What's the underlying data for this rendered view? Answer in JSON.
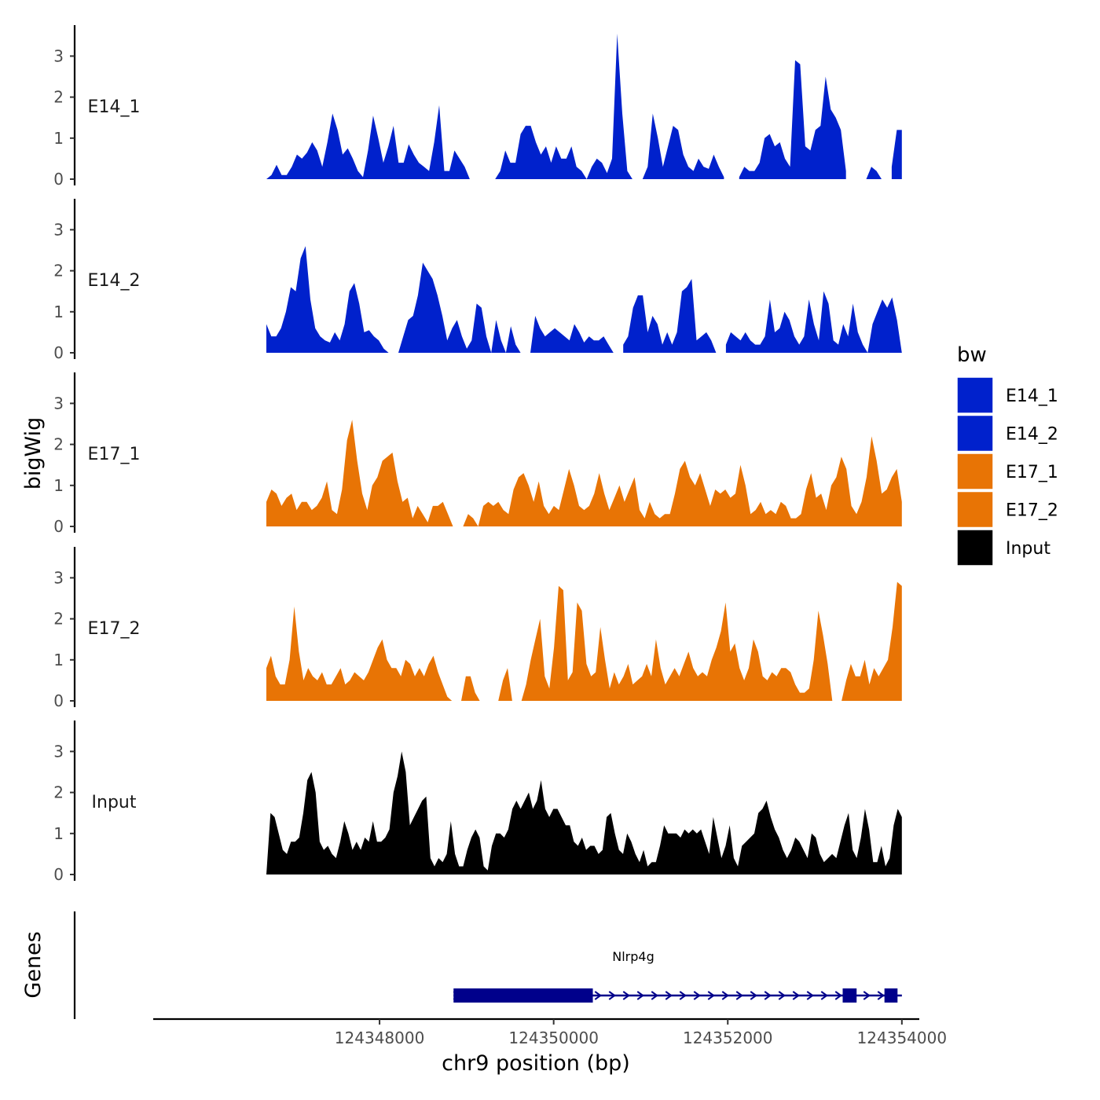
{
  "chart_data": {
    "type": "area",
    "x_min": 124346700,
    "x_max": 124354000,
    "xlim": [
      124345400,
      124354200
    ],
    "ylim": [
      0,
      3.6
    ],
    "y_ticks": [
      "0",
      "1",
      "2",
      "3"
    ],
    "x_ticks": [
      {
        "value": 124348000,
        "label": "124348000"
      },
      {
        "value": 124350000,
        "label": "124350000"
      },
      {
        "value": 124352000,
        "label": "124352000"
      },
      {
        "value": 124354000,
        "label": "124354000"
      }
    ],
    "xlabel": "chr9 position (bp)",
    "ylabel": "bigWig",
    "genes_label": "Genes",
    "legend": {
      "title": "bw",
      "items": [
        {
          "label": "E14_1",
          "color": "#0021cc"
        },
        {
          "label": "E14_2",
          "color": "#0021cc"
        },
        {
          "label": "E17_1",
          "color": "#e87405"
        },
        {
          "label": "E17_2",
          "color": "#e87405"
        },
        {
          "label": "Input",
          "color": "#000000"
        }
      ]
    },
    "series": [
      {
        "name": "E14_1",
        "color": "#0021cc",
        "values": [
          0.0,
          0.1,
          0.35,
          0.1,
          0.1,
          0.3,
          0.6,
          0.5,
          0.65,
          0.9,
          0.7,
          0.3,
          0.9,
          1.6,
          1.2,
          0.6,
          0.75,
          0.5,
          0.2,
          0.05,
          0.7,
          1.55,
          1.0,
          0.4,
          0.8,
          1.3,
          0.4,
          0.4,
          0.85,
          0.6,
          0.4,
          0.3,
          0.2,
          0.9,
          1.8,
          0.2,
          0.2,
          0.7,
          0.5,
          0.3,
          0.0,
          null,
          null,
          null,
          null,
          0.0,
          0.2,
          0.7,
          0.4,
          0.4,
          1.1,
          1.3,
          1.3,
          0.9,
          0.6,
          0.8,
          0.4,
          0.8,
          0.5,
          0.5,
          0.8,
          0.3,
          0.2,
          0.0,
          0.3,
          0.5,
          0.4,
          0.15,
          0.5,
          3.55,
          1.6,
          0.2,
          0.0,
          null,
          0.0,
          0.3,
          1.6,
          1.0,
          0.3,
          0.8,
          1.3,
          1.2,
          0.6,
          0.3,
          0.2,
          0.5,
          0.3,
          0.25,
          0.6,
          0.3,
          0.05,
          null,
          null,
          0.05,
          0.3,
          0.2,
          0.2,
          0.4,
          1.0,
          1.1,
          0.8,
          0.9,
          0.5,
          0.3,
          2.9,
          2.8,
          0.8,
          0.7,
          1.2,
          1.3,
          2.5,
          1.7,
          1.5,
          1.2,
          0.2,
          null,
          0.0,
          null,
          0.0,
          0.3,
          0.2,
          0.0,
          null,
          0.3,
          1.2,
          1.2
        ]
      },
      {
        "name": "E14_2",
        "color": "#0021cc",
        "values": [
          0.7,
          0.4,
          0.4,
          0.6,
          1.0,
          1.6,
          1.5,
          2.3,
          2.6,
          1.3,
          0.6,
          0.4,
          0.3,
          0.25,
          0.5,
          0.3,
          0.7,
          1.5,
          1.7,
          1.2,
          0.5,
          0.55,
          0.4,
          0.3,
          0.1,
          0.0,
          null,
          0.0,
          0.4,
          0.8,
          0.9,
          1.4,
          2.2,
          2.0,
          1.8,
          1.4,
          0.9,
          0.3,
          0.6,
          0.8,
          0.4,
          0.1,
          0.3,
          1.2,
          1.1,
          0.4,
          0.0,
          0.8,
          0.3,
          0.0,
          0.65,
          0.2,
          0.0,
          null,
          0.0,
          0.9,
          0.6,
          0.4,
          0.5,
          0.6,
          0.5,
          0.4,
          0.3,
          0.7,
          0.5,
          0.25,
          0.4,
          0.3,
          0.3,
          0.4,
          0.2,
          0.0,
          null,
          0.2,
          0.4,
          1.1,
          1.4,
          1.4,
          0.5,
          0.9,
          0.7,
          0.2,
          0.5,
          0.2,
          0.5,
          1.5,
          1.6,
          1.8,
          0.3,
          0.4,
          0.5,
          0.3,
          0.0,
          null,
          0.2,
          0.5,
          0.4,
          0.3,
          0.5,
          0.3,
          0.2,
          0.2,
          0.4,
          1.3,
          0.5,
          0.6,
          1.0,
          0.8,
          0.4,
          0.2,
          0.4,
          1.3,
          0.7,
          0.3,
          1.5,
          1.2,
          0.3,
          0.2,
          0.7,
          0.4,
          1.2,
          0.5,
          0.2,
          0.0,
          0.7,
          1.0,
          1.3,
          1.1,
          1.35,
          0.8,
          0.0
        ]
      },
      {
        "name": "E17_1",
        "color": "#e87405",
        "values": [
          0.6,
          0.9,
          0.8,
          0.5,
          0.7,
          0.8,
          0.4,
          0.6,
          0.6,
          0.4,
          0.5,
          0.7,
          1.1,
          0.4,
          0.3,
          0.9,
          2.1,
          2.6,
          1.6,
          0.8,
          0.4,
          1.0,
          1.2,
          1.6,
          1.7,
          1.8,
          1.1,
          0.6,
          0.7,
          0.2,
          0.5,
          0.3,
          0.1,
          0.5,
          0.5,
          0.6,
          0.3,
          0.0,
          null,
          0.0,
          0.3,
          0.2,
          0.0,
          0.5,
          0.6,
          0.5,
          0.6,
          0.4,
          0.3,
          0.9,
          1.2,
          1.3,
          1.0,
          0.6,
          1.1,
          0.5,
          0.3,
          0.5,
          0.4,
          0.9,
          1.4,
          1.0,
          0.5,
          0.4,
          0.5,
          0.8,
          1.3,
          0.8,
          0.4,
          0.7,
          1.0,
          0.6,
          0.9,
          1.2,
          0.4,
          0.2,
          0.6,
          0.3,
          0.2,
          0.3,
          0.3,
          0.8,
          1.4,
          1.6,
          1.2,
          1.0,
          1.3,
          0.9,
          0.5,
          0.9,
          0.8,
          0.9,
          0.7,
          0.8,
          1.5,
          1.0,
          0.3,
          0.4,
          0.6,
          0.3,
          0.4,
          0.3,
          0.6,
          0.5,
          0.2,
          0.2,
          0.3,
          0.9,
          1.3,
          0.7,
          0.8,
          0.4,
          1.0,
          1.2,
          1.7,
          1.4,
          0.5,
          0.3,
          0.6,
          1.2,
          2.2,
          1.6,
          0.8,
          0.9,
          1.2,
          1.4,
          0.6
        ]
      },
      {
        "name": "E17_2",
        "color": "#e87405",
        "values": [
          0.8,
          1.1,
          0.6,
          0.4,
          0.4,
          1.0,
          2.3,
          1.2,
          0.5,
          0.8,
          0.6,
          0.5,
          0.7,
          0.4,
          0.4,
          0.6,
          0.8,
          0.4,
          0.5,
          0.7,
          0.6,
          0.5,
          0.7,
          1.0,
          1.3,
          1.5,
          1.0,
          0.8,
          0.8,
          0.6,
          1.0,
          0.9,
          0.6,
          0.8,
          0.6,
          0.9,
          1.1,
          0.7,
          0.4,
          0.1,
          0.0,
          null,
          0.0,
          0.6,
          0.6,
          0.2,
          0.0,
          null,
          0.0,
          null,
          0.0,
          0.5,
          0.8,
          0.0,
          null,
          0.0,
          0.4,
          1.0,
          1.5,
          2.0,
          0.6,
          0.3,
          1.3,
          2.8,
          2.7,
          0.5,
          0.7,
          2.4,
          2.2,
          0.9,
          0.6,
          0.7,
          1.8,
          1.0,
          0.3,
          0.7,
          0.4,
          0.6,
          0.9,
          0.4,
          0.5,
          0.6,
          0.9,
          0.6,
          1.5,
          0.8,
          0.4,
          0.6,
          0.8,
          0.6,
          0.9,
          1.2,
          0.8,
          0.6,
          0.7,
          0.6,
          1.0,
          1.3,
          1.7,
          2.4,
          1.2,
          1.4,
          0.8,
          0.5,
          0.8,
          1.5,
          1.2,
          0.6,
          0.5,
          0.7,
          0.6,
          0.8,
          0.8,
          0.7,
          0.4,
          0.2,
          0.2,
          0.3,
          1.0,
          2.2,
          1.6,
          0.9,
          0.0,
          null,
          0.0,
          0.5,
          0.9,
          0.6,
          0.6,
          1.0,
          0.4,
          0.8,
          0.6,
          0.8,
          1.0,
          1.8,
          2.9,
          2.8
        ]
      },
      {
        "name": "Input",
        "color": "#000000",
        "values": [
          0.0,
          1.5,
          1.4,
          1.0,
          0.6,
          0.5,
          0.8,
          0.8,
          0.9,
          1.5,
          2.3,
          2.5,
          2.0,
          0.8,
          0.6,
          0.7,
          0.5,
          0.4,
          0.8,
          1.3,
          1.0,
          0.6,
          0.8,
          0.6,
          0.9,
          0.8,
          1.3,
          0.8,
          0.8,
          0.9,
          1.1,
          2.0,
          2.4,
          3.0,
          2.5,
          1.2,
          1.4,
          1.6,
          1.8,
          1.9,
          0.4,
          0.2,
          0.4,
          0.3,
          0.5,
          1.3,
          0.5,
          0.2,
          0.2,
          0.6,
          0.9,
          1.1,
          0.9,
          0.2,
          0.1,
          0.7,
          1.0,
          1.0,
          0.9,
          1.1,
          1.6,
          1.8,
          1.6,
          1.8,
          2.0,
          1.6,
          1.8,
          2.3,
          1.6,
          1.4,
          1.6,
          1.6,
          1.4,
          1.2,
          1.2,
          0.8,
          0.7,
          0.9,
          0.6,
          0.7,
          0.7,
          0.5,
          0.6,
          1.4,
          1.5,
          1.0,
          0.6,
          0.5,
          1.0,
          0.8,
          0.5,
          0.3,
          0.6,
          0.2,
          0.3,
          0.3,
          0.7,
          1.2,
          1.0,
          1.0,
          1.0,
          0.9,
          1.1,
          1.0,
          1.1,
          1.0,
          1.1,
          0.8,
          0.5,
          1.4,
          0.9,
          0.4,
          0.7,
          1.2,
          0.4,
          0.2,
          0.7,
          0.8,
          0.9,
          1.0,
          1.5,
          1.6,
          1.8,
          1.4,
          1.1,
          0.9,
          0.6,
          0.4,
          0.6,
          0.9,
          0.8,
          0.6,
          0.4,
          1.0,
          0.9,
          0.5,
          0.3,
          0.4,
          0.5,
          0.4,
          0.8,
          1.2,
          1.5,
          0.6,
          0.4,
          0.9,
          1.6,
          1.1,
          0.3,
          0.3,
          0.7,
          0.2,
          0.4,
          1.2,
          1.6,
          1.4
        ]
      }
    ],
    "gene": {
      "name": "Nlrp4g",
      "strand": "+",
      "start": 124348850,
      "end": 124354000,
      "exons": [
        [
          124348850,
          124350450
        ],
        [
          124353320,
          124353480
        ],
        [
          124353800,
          124353950
        ]
      ],
      "color": "#00008b"
    }
  }
}
